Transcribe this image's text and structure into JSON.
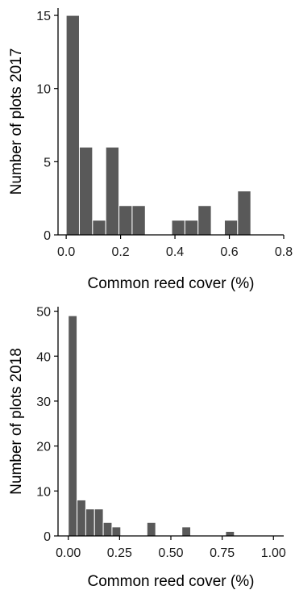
{
  "chart_data": [
    {
      "type": "bar",
      "title": "",
      "xlabel": "Common reed cover (%)",
      "ylabel": "Number of plots 2017",
      "xlim": [
        -0.03,
        0.8
      ],
      "ylim": [
        0,
        15.5
      ],
      "xticks": [
        0.0,
        0.2,
        0.4,
        0.6,
        0.8
      ],
      "xtick_labels": [
        "0.0",
        "0.2",
        "0.4",
        "0.6",
        "0.8"
      ],
      "yticks": [
        0,
        5,
        10,
        15
      ],
      "ytick_labels": [
        "0",
        "5",
        "10",
        "15"
      ],
      "bin_width": 0.0485,
      "bins": [
        {
          "x": 0.0,
          "count": 15
        },
        {
          "x": 0.0485,
          "count": 6
        },
        {
          "x": 0.097,
          "count": 1
        },
        {
          "x": 0.1455,
          "count": 6
        },
        {
          "x": 0.194,
          "count": 2
        },
        {
          "x": 0.2425,
          "count": 2
        },
        {
          "x": 0.291,
          "count": 0
        },
        {
          "x": 0.3395,
          "count": 0
        },
        {
          "x": 0.388,
          "count": 1
        },
        {
          "x": 0.4365,
          "count": 1
        },
        {
          "x": 0.485,
          "count": 2
        },
        {
          "x": 0.5335,
          "count": 0
        },
        {
          "x": 0.582,
          "count": 1
        },
        {
          "x": 0.6305,
          "count": 3
        }
      ],
      "bar_color": "#595959",
      "grid": false
    },
    {
      "type": "bar",
      "title": "",
      "xlabel": "Common reed cover (%)",
      "ylabel": "Number of plots 2018",
      "xlim": [
        -0.05,
        1.05
      ],
      "ylim": [
        0,
        51
      ],
      "xticks": [
        0.0,
        0.25,
        0.5,
        0.75,
        1.0
      ],
      "xtick_labels": [
        "0.00",
        "0.25",
        "0.50",
        "0.75",
        "1.00"
      ],
      "yticks": [
        0,
        10,
        20,
        30,
        40,
        50
      ],
      "ytick_labels": [
        "0",
        "10",
        "20",
        "30",
        "40",
        "50"
      ],
      "bin_width": 0.0426,
      "bins": [
        {
          "x": 0.0,
          "count": 49
        },
        {
          "x": 0.0426,
          "count": 8
        },
        {
          "x": 0.0852,
          "count": 6
        },
        {
          "x": 0.1278,
          "count": 6
        },
        {
          "x": 0.1704,
          "count": 3
        },
        {
          "x": 0.213,
          "count": 2
        },
        {
          "x": 0.2556,
          "count": 0
        },
        {
          "x": 0.2982,
          "count": 0
        },
        {
          "x": 0.3408,
          "count": 0
        },
        {
          "x": 0.3834,
          "count": 3
        },
        {
          "x": 0.426,
          "count": 0
        },
        {
          "x": 0.4686,
          "count": 0
        },
        {
          "x": 0.5112,
          "count": 0
        },
        {
          "x": 0.5538,
          "count": 2
        },
        {
          "x": 0.5964,
          "count": 0
        },
        {
          "x": 0.639,
          "count": 0
        },
        {
          "x": 0.6816,
          "count": 0
        },
        {
          "x": 0.7242,
          "count": 0
        },
        {
          "x": 0.7668,
          "count": 1
        }
      ],
      "bar_color": "#595959",
      "grid": false
    }
  ]
}
